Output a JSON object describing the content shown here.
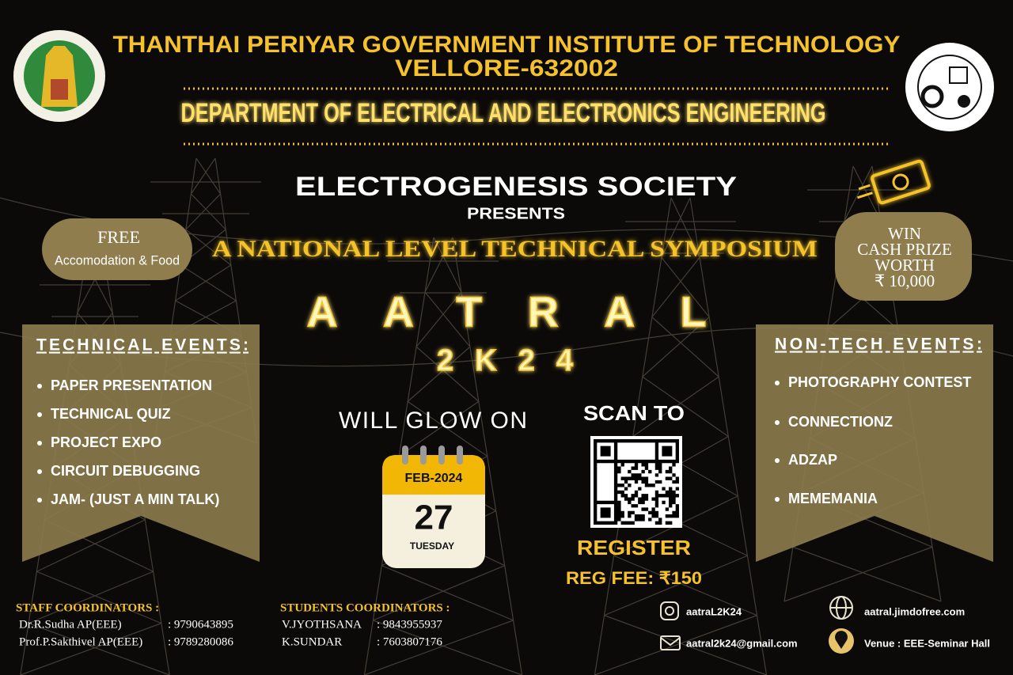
{
  "header": {
    "institute": "THANTHAI PERIYAR GOVERNMENT INSTITUTE OF TECHNOLOGY",
    "city": "VELLORE-632002",
    "department": "DEPARTMENT OF ELECTRICAL AND ELECTRONICS ENGINEERING"
  },
  "intro": {
    "society": "ELECTROGENESIS SOCIETY",
    "presents": "PRESENTS",
    "symposium": "A NATIONAL LEVEL  TECHNICAL SYMPOSIUM"
  },
  "event": {
    "name": "AATRAL",
    "edition": "2K24",
    "tagline": "WILL GLOW ON"
  },
  "free_badge": {
    "title": "FREE",
    "text": "Accomodation & Food"
  },
  "prize_badge": {
    "lines": [
      "WIN",
      "CASH PRIZE",
      "WORTH",
      "₹ 10,000"
    ]
  },
  "technical_events": {
    "title": "TECHNICAL EVENTS:",
    "items": [
      "PAPER PRESENTATION",
      "TECHNICAL QUIZ",
      "PROJECT EXPO",
      "CIRCUIT DEBUGGING",
      "JAM- (JUST A MIN TALK)"
    ]
  },
  "non_tech_events": {
    "title": "NON-TECH EVENTS:",
    "items": [
      "PHOTOGRAPHY CONTEST",
      "CONNECTIONZ",
      "ADZAP",
      "MEMEMANIA"
    ]
  },
  "date": {
    "month": "FEB-2024",
    "day": "27",
    "weekday": "TUESDAY"
  },
  "registration": {
    "scan": "SCAN TO",
    "register": "REGISTER",
    "fee": "REG FEE: ₹150"
  },
  "staff": {
    "title": "STAFF COORDINATORS :",
    "rows": [
      [
        "Dr.R.Sudha AP(EEE)",
        ": 9790643895"
      ],
      [
        "Prof.P.Sakthivel AP(EEE)",
        ": 9789280086"
      ]
    ]
  },
  "students": {
    "title": "STUDENTS COORDINATORS :",
    "rows": [
      [
        "V.JYOTHSANA",
        ": 9843955937"
      ],
      [
        "K.SUNDAR",
        ": 7603807176"
      ]
    ]
  },
  "contacts": {
    "instagram": "aatraL2K24",
    "email": "aatral2k24@gmail.com",
    "website": "aatral.jimdofree.com",
    "venue": "Venue : EEE-Seminar Hall"
  }
}
